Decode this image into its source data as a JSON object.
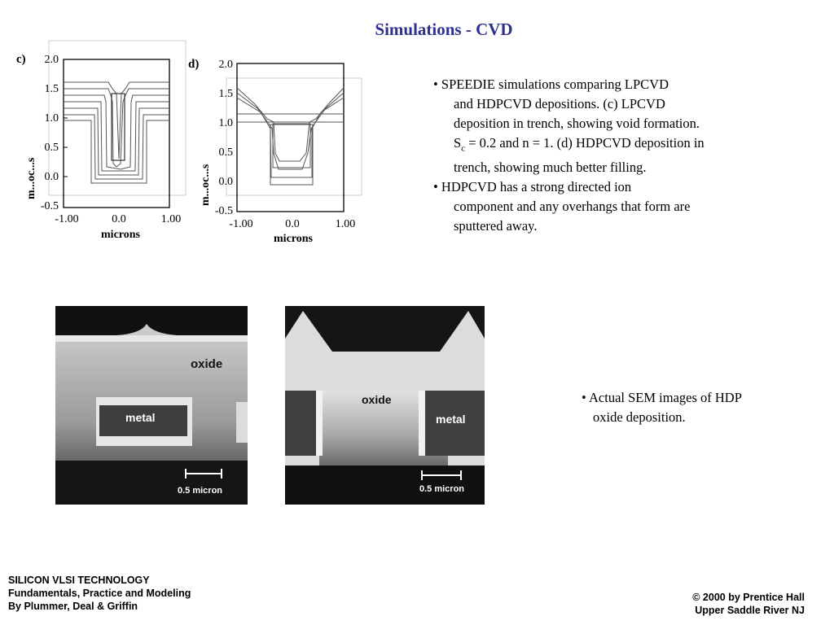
{
  "slide": {
    "title": "Simulations - CVD"
  },
  "plots": [
    {
      "panel_label": "c)",
      "y_ticks": [
        "2.0",
        "1.5",
        "1.0",
        "0.5",
        "0.0",
        "-0.5"
      ],
      "x_ticks": [
        "-1.00",
        "0.0",
        "1.00"
      ],
      "xlabel": "microns",
      "ylabel": "m...oc...s"
    },
    {
      "panel_label": "d)",
      "y_ticks": [
        "2.0",
        "1.5",
        "1.0",
        "0.5",
        "0.0",
        "-0.5"
      ],
      "x_ticks": [
        "-1.00",
        "0.0",
        "1.00"
      ],
      "xlabel": "microns",
      "ylabel": "m...oc...s"
    }
  ],
  "bullets": [
    {
      "lines": [
        "• SPEEDIE simulations comparing LPCVD",
        "and HDPCVD depositions. (c) LPCVD",
        "deposition in trench, showing void formation."
      ],
      "sc_prefix": "S",
      "sc_sub": "c",
      "sc_suffix": " = 0.2 and n = 1. (d) HDPCVD deposition in",
      "tail": " trench, showing much better filling."
    },
    {
      "lines": [
        "• HDPCVD has a strong directed ion",
        "component and any overhangs that form are",
        "sputtered away."
      ]
    }
  ],
  "sem_images": [
    {
      "oxide_label": "oxide",
      "metal_label": "metal",
      "scale_label": "0.5  micron"
    },
    {
      "oxide_label": "oxide",
      "metal_label": "metal",
      "scale_label": "0.5  micron"
    }
  ],
  "sem_caption": [
    "• Actual SEM images of HDP",
    "oxide deposition."
  ],
  "footer": {
    "left": [
      "SILICON VLSI TECHNOLOGY",
      "Fundamentals, Practice and Modeling",
      "By Plummer, Deal & Griffin"
    ],
    "right": [
      "© 2000 by Prentice Hall",
      "Upper Saddle River NJ"
    ]
  }
}
